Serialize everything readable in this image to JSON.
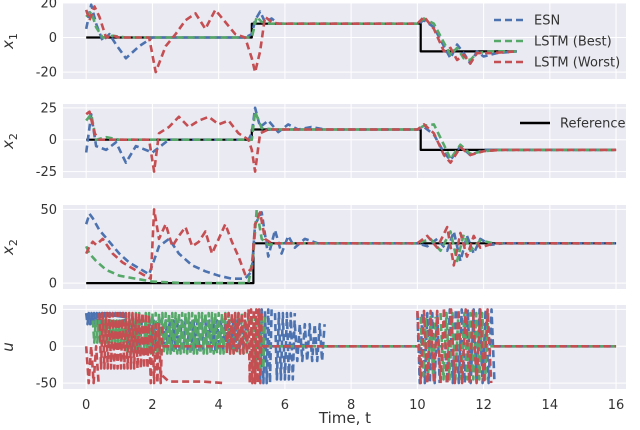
{
  "colors": {
    "background": "#EAEAF2",
    "grid": "#FFFFFF",
    "reference": "#000000",
    "ESN": "#4C72B0",
    "LSTM (Best)": "#55A868",
    "LSTM (Worst)": "#C44E52"
  },
  "chart_data": {
    "type": "line",
    "xlabel": "Time, t",
    "xlim": [
      -0.7,
      16.3
    ],
    "xticks": [
      0,
      2,
      4,
      6,
      8,
      10,
      12,
      14,
      16
    ],
    "legend_top": {
      "placement": "top-right",
      "entries": [
        "ESN",
        "LSTM (Best)",
        "LSTM (Worst)"
      ]
    },
    "legend_second": {
      "placement": "top-right",
      "entries": [
        "Reference"
      ]
    },
    "panels": [
      {
        "ylabel": "x1",
        "ylabel_main": "x",
        "ylabel_sub": "1",
        "ylim": [
          -24,
          20
        ],
        "yticks": [
          -20,
          0,
          20
        ],
        "series": [
          {
            "name": "Reference",
            "style": "solid",
            "x": [
              0,
              5.0,
              5.0,
              10.1,
              10.1,
              13.0
            ],
            "y": [
              0,
              0,
              8,
              8,
              -8,
              -8
            ]
          },
          {
            "name": "ESN",
            "style": "dashed",
            "x": [
              0,
              0.15,
              0.3,
              0.5,
              0.7,
              0.9,
              1.2,
              1.6,
              2.0,
              3.0,
              4.0,
              4.8,
              5.0,
              5.1,
              5.25,
              5.4,
              5.6,
              5.8,
              6.2,
              7.0,
              8.0,
              9.0,
              10.0,
              10.2,
              10.5,
              10.8,
              11.0,
              11.2,
              11.4,
              11.6,
              11.8,
              12.0,
              12.4,
              13.0
            ],
            "y": [
              5,
              19,
              8,
              -2,
              2,
              -4,
              -12,
              -5,
              0,
              0,
              0,
              0,
              2,
              10,
              15,
              9,
              11,
              8,
              8,
              8,
              8,
              8,
              8,
              10,
              6,
              -5,
              -12,
              -4,
              -9,
              -15,
              -8,
              -11,
              -9,
              -8
            ]
          },
          {
            "name": "LSTM (Best)",
            "style": "dashed",
            "x": [
              0,
              0.15,
              0.3,
              0.5,
              0.8,
              1.2,
              2.0,
              3.0,
              4.0,
              4.9,
              5.0,
              5.15,
              5.3,
              5.6,
              6.0,
              7.0,
              8.0,
              9.0,
              10.0,
              10.2,
              10.5,
              10.8,
              11.0,
              11.2,
              11.4,
              11.6,
              11.8,
              12.2,
              13.0
            ],
            "y": [
              12,
              15,
              6,
              0,
              1,
              0,
              0,
              0,
              0,
              0,
              0,
              12,
              9,
              8,
              8,
              8,
              8,
              8,
              8,
              11,
              8,
              -3,
              -10,
              -6,
              -12,
              -13,
              -9,
              -8,
              -8
            ]
          },
          {
            "name": "LSTM (Worst)",
            "style": "dashed",
            "x": [
              0,
              0.1,
              0.25,
              0.4,
              0.6,
              0.8,
              1.0,
              1.3,
              1.6,
              1.9,
              2.1,
              2.4,
              2.7,
              3.0,
              3.3,
              3.6,
              3.9,
              4.2,
              4.5,
              4.8,
              5.0,
              5.1,
              5.25,
              5.4,
              5.6,
              5.8,
              6.2,
              7.0,
              8.0,
              9.0,
              10.0,
              10.2,
              10.5,
              10.8,
              11.0,
              11.2,
              11.4,
              11.6,
              11.8,
              12.2,
              13.0
            ],
            "y": [
              16,
              10,
              18,
              12,
              0,
              1,
              0,
              0,
              0,
              0,
              -20,
              -5,
              2,
              10,
              14,
              5,
              16,
              9,
              2,
              0,
              -12,
              -20,
              -8,
              12,
              9,
              8,
              8,
              8,
              8,
              8,
              8,
              12,
              5,
              -8,
              -6,
              -13,
              -10,
              -15,
              -9,
              -9,
              -8
            ]
          }
        ]
      },
      {
        "ylabel": "x2",
        "ylabel_main": "x",
        "ylabel_sub": "2",
        "ylim": [
          -30,
          28
        ],
        "yticks": [
          -25,
          0,
          25
        ],
        "series": [
          {
            "name": "Reference",
            "style": "solid",
            "x": [
              0,
              5.0,
              5.0,
              10.1,
              10.1,
              16.0
            ],
            "y": [
              0,
              0,
              8,
              8,
              -8,
              -8
            ]
          },
          {
            "name": "ESN",
            "style": "dashed",
            "x": [
              0,
              0.15,
              0.3,
              0.6,
              0.9,
              1.2,
              1.5,
              2.0,
              2.5,
              3.0,
              4.0,
              4.9,
              5.0,
              5.1,
              5.25,
              5.5,
              5.8,
              6.1,
              6.4,
              6.8,
              7.2,
              8.0,
              9.0,
              10.0,
              10.2,
              10.5,
              10.8,
              11.0,
              11.3,
              11.6,
              12.0,
              12.5,
              13.0,
              16.0
            ],
            "y": [
              -10,
              20,
              -5,
              -8,
              -2,
              -18,
              -5,
              -10,
              0,
              0,
              0,
              0,
              5,
              25,
              10,
              15,
              6,
              12,
              8,
              10,
              8,
              8,
              8,
              8,
              10,
              4,
              -10,
              -16,
              -5,
              -12,
              -8,
              -8,
              -8,
              -8
            ]
          },
          {
            "name": "LSTM (Best)",
            "style": "dashed",
            "x": [
              0,
              0.15,
              0.3,
              0.6,
              1.0,
              2.0,
              3.0,
              4.0,
              4.9,
              5.0,
              5.1,
              5.3,
              5.7,
              6.2,
              7.0,
              8.0,
              9.0,
              10.0,
              10.2,
              10.5,
              10.8,
              11.0,
              11.3,
              11.6,
              12.0,
              12.5,
              16.0
            ],
            "y": [
              15,
              20,
              0,
              2,
              0,
              0,
              0,
              0,
              0,
              0,
              22,
              9,
              8,
              8,
              8,
              8,
              8,
              8,
              11,
              12,
              -4,
              -15,
              -4,
              -11,
              -9,
              -8,
              -8
            ]
          },
          {
            "name": "LSTM (Worst)",
            "style": "dashed",
            "x": [
              0,
              0.1,
              0.25,
              0.4,
              0.7,
              1.0,
              1.3,
              1.6,
              1.9,
              2.05,
              2.2,
              2.5,
              2.8,
              3.1,
              3.4,
              3.7,
              4.0,
              4.3,
              4.6,
              4.9,
              5.0,
              5.1,
              5.25,
              5.5,
              6.0,
              7.0,
              8.0,
              9.0,
              10.0,
              10.2,
              10.5,
              10.8,
              11.0,
              11.3,
              11.6,
              12.0,
              12.5,
              16.0
            ],
            "y": [
              20,
              22,
              5,
              0,
              0,
              0,
              0,
              0,
              0,
              -25,
              5,
              10,
              18,
              10,
              15,
              18,
              12,
              15,
              5,
              0,
              -8,
              -25,
              5,
              8,
              8,
              8,
              8,
              8,
              8,
              12,
              5,
              -12,
              -18,
              -6,
              -12,
              -9,
              -8,
              -8
            ]
          }
        ]
      },
      {
        "ylabel": "x2",
        "ylabel_main": "x",
        "ylabel_sub": "2",
        "ylim": [
          -4,
          53
        ],
        "yticks": [
          0,
          50
        ],
        "series": [
          {
            "name": "Reference",
            "style": "solid",
            "x": [
              0,
              5.05,
              5.05,
              16.0
            ],
            "y": [
              0,
              0,
              27,
              27
            ]
          },
          {
            "name": "ESN",
            "style": "dashed",
            "x": [
              0,
              0.1,
              0.2,
              0.4,
              0.7,
              1.0,
              1.3,
              1.6,
              1.9,
              2.2,
              2.5,
              2.8,
              3.2,
              3.6,
              4.0,
              4.4,
              4.8,
              5.0,
              5.1,
              5.3,
              5.5,
              5.7,
              5.9,
              6.1,
              6.3,
              6.6,
              7.0,
              8.0,
              9.0,
              10.0,
              10.3,
              10.6,
              10.9,
              11.1,
              11.3,
              11.5,
              11.7,
              11.9,
              12.2,
              12.6,
              16.0
            ],
            "y": [
              40,
              47,
              44,
              36,
              28,
              20,
              14,
              10,
              6,
              25,
              30,
              20,
              12,
              8,
              5,
              3,
              3,
              8,
              40,
              48,
              18,
              36,
              20,
              32,
              24,
              30,
              27,
              27,
              27,
              27,
              25,
              30,
              22,
              35,
              15,
              32,
              20,
              30,
              26,
              27,
              27
            ]
          },
          {
            "name": "LSTM (Best)",
            "style": "dashed",
            "x": [
              0,
              0.1,
              0.3,
              0.6,
              1.0,
              1.5,
              2.0,
              3.0,
              4.0,
              4.9,
              5.05,
              5.15,
              5.3,
              5.5,
              5.8,
              6.2,
              7.0,
              8.0,
              10.0,
              10.4,
              10.7,
              11.0,
              11.2,
              11.4,
              11.6,
              11.9,
              12.3,
              16.0
            ],
            "y": [
              25,
              20,
              15,
              9,
              5,
              3,
              1,
              0,
              0,
              0,
              20,
              50,
              30,
              26,
              27,
              27,
              27,
              27,
              27,
              30,
              22,
              35,
              15,
              33,
              22,
              29,
              27,
              27
            ]
          },
          {
            "name": "LSTM (Worst)",
            "style": "dashed",
            "x": [
              0,
              0.1,
              0.2,
              0.3,
              0.5,
              0.8,
              1.1,
              1.4,
              1.7,
              1.95,
              2.05,
              2.2,
              2.4,
              2.6,
              2.8,
              3.0,
              3.2,
              3.4,
              3.6,
              3.8,
              4.0,
              4.2,
              4.4,
              4.6,
              4.8,
              5.0,
              5.1,
              5.25,
              5.4,
              5.6,
              6.0,
              7.0,
              8.0,
              10.0,
              10.3,
              10.6,
              10.9,
              11.1,
              11.3,
              11.5,
              11.7,
              11.9,
              12.3,
              16.0
            ],
            "y": [
              20,
              25,
              28,
              26,
              30,
              20,
              14,
              10,
              6,
              3,
              50,
              30,
              40,
              25,
              32,
              38,
              25,
              28,
              35,
              20,
              30,
              40,
              28,
              18,
              6,
              10,
              40,
              48,
              30,
              27,
              27,
              27,
              27,
              27,
              32,
              24,
              38,
              12,
              34,
              18,
              32,
              24,
              27,
              27
            ]
          }
        ]
      },
      {
        "ylabel": "u",
        "ylabel_main": "u",
        "ylabel_sub": "",
        "ylim": [
          -58,
          56
        ],
        "yticks": [
          -50,
          0,
          50
        ],
        "series": [
          {
            "name": "ESN",
            "style": "dashed",
            "kind": "osc",
            "segments": [
              {
                "x0": 0.0,
                "x1": 1.2,
                "period": 0.08,
                "hi": 45,
                "lo": 30
              },
              {
                "x0": 1.2,
                "x1": 4.9,
                "period": 0.12,
                "hi": 35,
                "lo": -5
              },
              {
                "x0": 5.2,
                "x1": 5.6,
                "period": 0.1,
                "hi": 50,
                "lo": -50
              },
              {
                "x0": 5.7,
                "x1": 6.3,
                "period": 0.12,
                "hi": 45,
                "lo": -45
              },
              {
                "x0": 6.3,
                "x1": 7.2,
                "period": 0.15,
                "hi": 30,
                "lo": -20
              },
              {
                "x0": 10.0,
                "x1": 10.7,
                "period": 0.15,
                "hi": 45,
                "lo": -50
              },
              {
                "x0": 10.8,
                "x1": 12.4,
                "period": 0.18,
                "hi": 50,
                "lo": -50
              }
            ],
            "flat": 0
          },
          {
            "name": "LSTM (Best)",
            "style": "dashed",
            "kind": "osc",
            "segments": [
              {
                "x0": 0.2,
                "x1": 1.2,
                "period": 0.09,
                "hi": 35,
                "lo": 5
              },
              {
                "x0": 1.2,
                "x1": 4.9,
                "period": 0.1,
                "hi": 45,
                "lo": -10
              },
              {
                "x0": 5.0,
                "x1": 5.4,
                "period": 0.1,
                "hi": 40,
                "lo": -30
              },
              {
                "x0": 10.1,
                "x1": 10.6,
                "period": 0.15,
                "hi": 40,
                "lo": -40
              },
              {
                "x0": 10.7,
                "x1": 12.2,
                "period": 0.18,
                "hi": 45,
                "lo": -45
              }
            ],
            "flat": 0
          },
          {
            "name": "LSTM (Worst)",
            "style": "dashed",
            "kind": "osc",
            "segments": [
              {
                "x0": 0.0,
                "x1": 0.4,
                "period": 0.15,
                "hi": 0,
                "lo": -50
              },
              {
                "x0": 0.4,
                "x1": 1.9,
                "period": 0.1,
                "hi": 45,
                "lo": -30
              },
              {
                "x0": 1.9,
                "x1": 2.3,
                "period": 0.1,
                "hi": 30,
                "lo": -50
              },
              {
                "x0": 4.2,
                "x1": 4.9,
                "period": 0.1,
                "hi": 45,
                "lo": -10
              },
              {
                "x0": 4.9,
                "x1": 5.3,
                "period": 0.08,
                "hi": 50,
                "lo": -50
              },
              {
                "x0": 10.0,
                "x1": 10.8,
                "period": 0.2,
                "hi": 48,
                "lo": -50
              },
              {
                "x0": 10.8,
                "x1": 12.3,
                "period": 0.22,
                "hi": 50,
                "lo": -50
              }
            ],
            "flat": 0,
            "extra": {
              "x": [
                2.3,
                2.5,
                3.5,
                4.2
              ],
              "y": [
                -40,
                -48,
                -48,
                -50
              ]
            }
          }
        ]
      }
    ]
  }
}
